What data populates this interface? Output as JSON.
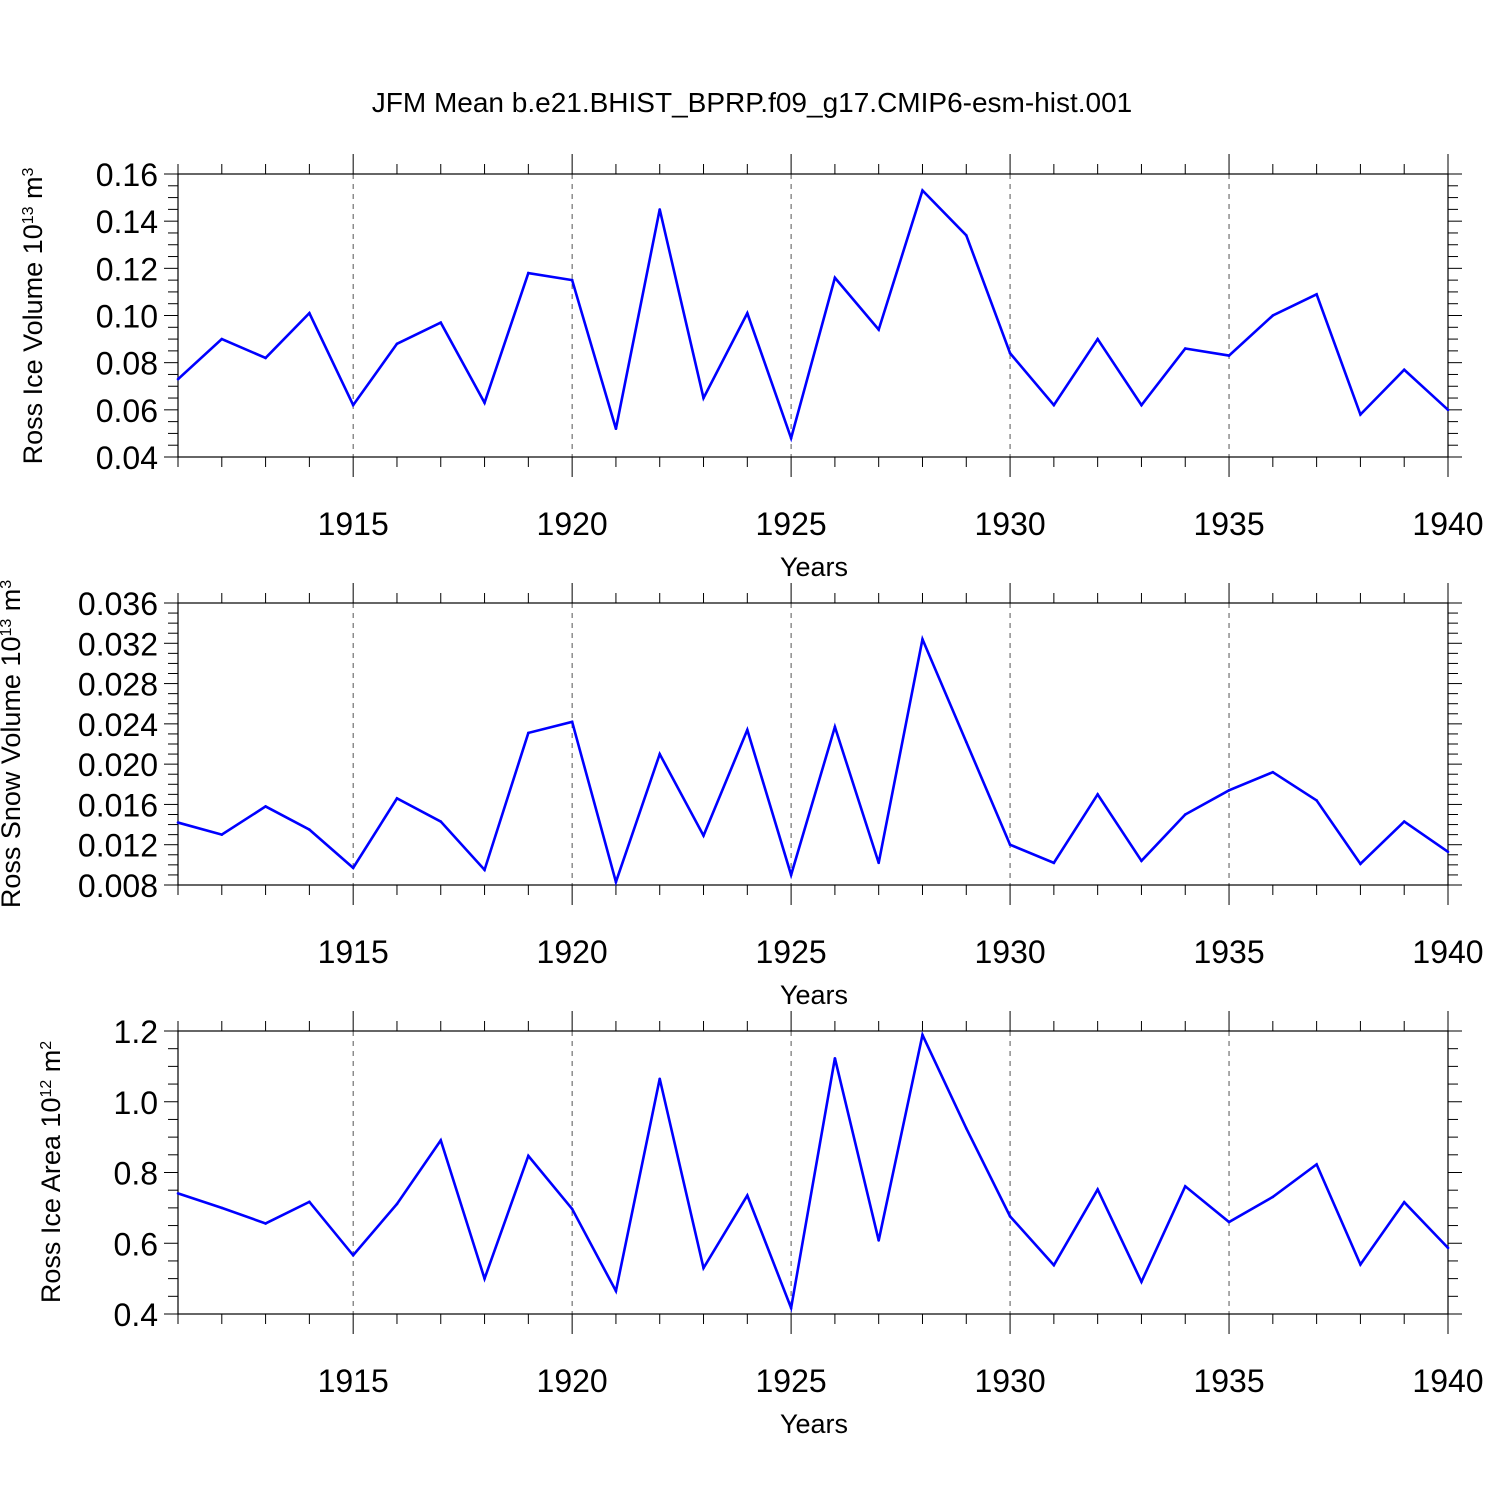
{
  "figure": {
    "title": "JFM Mean b.e21.BHIST_BPRP.f09_g17.CMIP6-esm-hist.001"
  },
  "style": {
    "line_color": "#0000ff",
    "axis_color": "#000000",
    "grid_color": "#555555"
  },
  "chart_data": [
    {
      "type": "line",
      "title": "",
      "xlabel": "Years",
      "ylabel": "Ross Ice Volume 10",
      "ylabel_exp": "13",
      "ylabel_unit": " m",
      "ylabel_unit_exp": "3",
      "xlim": [
        1911,
        1940
      ],
      "ylim": [
        0.04,
        0.16
      ],
      "yticks": [
        0.04,
        0.06,
        0.08,
        0.1,
        0.12,
        0.14,
        0.16
      ],
      "yticklabels": [
        "0.04",
        "0.06",
        "0.08",
        "0.10",
        "0.12",
        "0.14",
        "0.16"
      ],
      "yminor": 0.005,
      "xticks": [
        1915,
        1920,
        1925,
        1930,
        1935,
        1940
      ],
      "xticklabels": [
        "1915",
        "1920",
        "1925",
        "1930",
        "1935",
        "1940"
      ],
      "grid": "vertical-dashed",
      "series": [
        {
          "name": "Ross Ice Volume",
          "x": [
            1911,
            1912,
            1913,
            1914,
            1915,
            1916,
            1917,
            1918,
            1919,
            1920,
            1921,
            1922,
            1923,
            1924,
            1925,
            1926,
            1927,
            1928,
            1929,
            1930,
            1931,
            1932,
            1933,
            1934,
            1935,
            1936,
            1937,
            1938,
            1939,
            1940
          ],
          "values": [
            0.073,
            0.09,
            0.082,
            0.101,
            0.062,
            0.088,
            0.097,
            0.063,
            0.118,
            0.115,
            0.052,
            0.145,
            0.065,
            0.101,
            0.048,
            0.116,
            0.094,
            0.153,
            0.134,
            0.084,
            0.062,
            0.09,
            0.062,
            0.086,
            0.083,
            0.1,
            0.109,
            0.058,
            0.077,
            0.06
          ]
        }
      ]
    },
    {
      "type": "line",
      "title": "",
      "xlabel": "Years",
      "ylabel": "Ross Snow Volume 10",
      "ylabel_exp": "13",
      "ylabel_unit": " m",
      "ylabel_unit_exp": "3",
      "xlim": [
        1911,
        1940
      ],
      "ylim": [
        0.008,
        0.036
      ],
      "yticks": [
        0.008,
        0.012,
        0.016,
        0.02,
        0.024,
        0.028,
        0.032,
        0.036
      ],
      "yticklabels": [
        "0.008",
        "0.012",
        "0.016",
        "0.020",
        "0.024",
        "0.028",
        "0.032",
        "0.036"
      ],
      "yminor": 0.001,
      "xticks": [
        1915,
        1920,
        1925,
        1930,
        1935,
        1940
      ],
      "xticklabels": [
        "1915",
        "1920",
        "1925",
        "1930",
        "1935",
        "1940"
      ],
      "grid": "vertical-dashed",
      "series": [
        {
          "name": "Ross Snow Volume",
          "x": [
            1911,
            1912,
            1913,
            1914,
            1915,
            1916,
            1917,
            1918,
            1919,
            1920,
            1921,
            1922,
            1923,
            1924,
            1925,
            1926,
            1927,
            1928,
            1929,
            1930,
            1931,
            1932,
            1933,
            1934,
            1935,
            1936,
            1937,
            1938,
            1939,
            1940
          ],
          "values": [
            0.0142,
            0.013,
            0.0158,
            0.0135,
            0.0097,
            0.0166,
            0.0143,
            0.0095,
            0.0231,
            0.0242,
            0.0083,
            0.021,
            0.0129,
            0.0234,
            0.009,
            0.0237,
            0.0102,
            0.0324,
            0.0222,
            0.012,
            0.0102,
            0.017,
            0.0104,
            0.015,
            0.0174,
            0.0192,
            0.0164,
            0.0101,
            0.0143,
            0.0113
          ]
        }
      ]
    },
    {
      "type": "line",
      "title": "",
      "xlabel": "Years",
      "ylabel": "Ross Ice Area 10",
      "ylabel_exp": "12",
      "ylabel_unit": " m",
      "ylabel_unit_exp": "2",
      "xlim": [
        1911,
        1940
      ],
      "ylim": [
        0.4,
        1.2
      ],
      "yticks": [
        0.4,
        0.6,
        0.8,
        1.0,
        1.2
      ],
      "yticklabels": [
        "0.4",
        "0.6",
        "0.8",
        "1.0",
        "1.2"
      ],
      "yminor": 0.05,
      "xticks": [
        1915,
        1920,
        1925,
        1930,
        1935,
        1940
      ],
      "xticklabels": [
        "1915",
        "1920",
        "1925",
        "1930",
        "1935",
        "1940"
      ],
      "grid": "vertical-dashed",
      "series": [
        {
          "name": "Ross Ice Area",
          "x": [
            1911,
            1912,
            1913,
            1914,
            1915,
            1916,
            1917,
            1918,
            1919,
            1920,
            1921,
            1922,
            1923,
            1924,
            1925,
            1926,
            1927,
            1928,
            1929,
            1930,
            1931,
            1932,
            1933,
            1934,
            1935,
            1936,
            1937,
            1938,
            1939,
            1940
          ],
          "values": [
            0.741,
            0.7,
            0.656,
            0.717,
            0.566,
            0.711,
            0.891,
            0.5,
            0.847,
            0.697,
            0.465,
            1.065,
            0.53,
            0.735,
            0.417,
            1.123,
            0.608,
            1.189,
            0.925,
            0.676,
            0.538,
            0.752,
            0.491,
            0.761,
            0.66,
            0.731,
            0.823,
            0.54,
            0.716,
            0.587
          ]
        }
      ]
    }
  ]
}
